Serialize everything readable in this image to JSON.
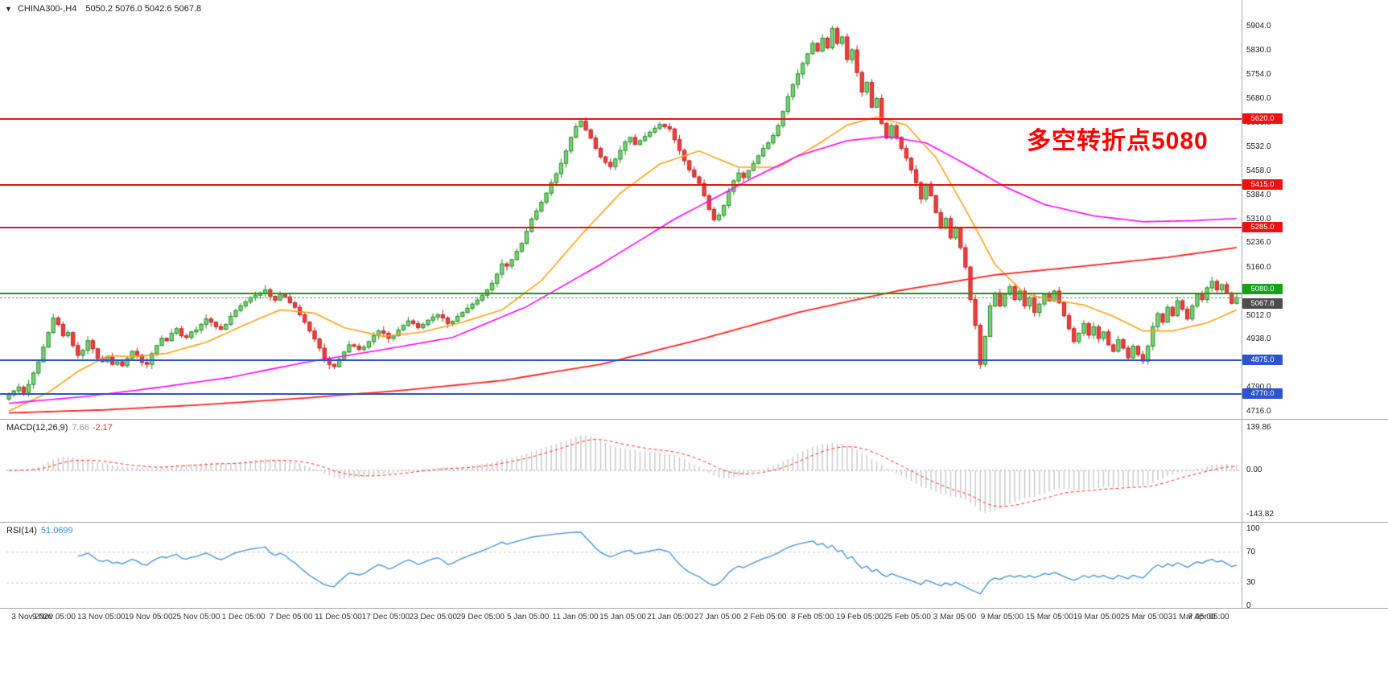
{
  "header": {
    "menu_icon": "▼",
    "symbol_tf": "CHINA300-,H4",
    "ohlc_text": "5050.2 5076.0 5042.6 5067.8"
  },
  "time_axis": {
    "labels": [
      "3 Nov 2020",
      "9 Nov 05:00",
      "13 Nov 05:00",
      "19 Nov 05:00",
      "25 Nov 05:00",
      "1 Dec 05:00",
      "7 Dec 05:00",
      "11 Dec 05:00",
      "17 Dec 05:00",
      "23 Dec 05:00",
      "29 Dec 05:00",
      "5 Jan 05:00",
      "11 Jan 05:00",
      "15 Jan 05:00",
      "21 Jan 05:00",
      "27 Jan 05:00",
      "2 Feb 05:00",
      "8 Feb 05:00",
      "19 Feb 05:00",
      "25 Feb 05:00",
      "3 Mar 05:00",
      "9 Mar 05:00",
      "15 Mar 05:00",
      "19 Mar 05:00",
      "25 Mar 05:00",
      "31 Mar 05:00",
      "7 Apr 05:00"
    ]
  },
  "chart_data": [
    {
      "panel": "main",
      "type": "candlestick",
      "symbol": "CHINA300-",
      "timeframe": "H4",
      "current_bar": {
        "open": 5050.2,
        "high": 5076.0,
        "low": 5042.6,
        "close": 5067.8
      },
      "ylim": [
        4716.0,
        5904.0
      ],
      "y_axis_ticks": [
        5904.0,
        5830.0,
        5754.0,
        5680.0,
        5606.0,
        5532.0,
        5458.0,
        5384.0,
        5310.0,
        5236.0,
        5160.0,
        5086.0,
        5012.0,
        4938.0,
        4864.0,
        4790.0,
        4716.0
      ],
      "first_open": 4755,
      "open_rule": "open equals previous close",
      "wick_cycle": [
        9,
        4,
        14,
        6,
        18,
        8,
        3,
        12,
        5,
        16,
        7,
        11
      ],
      "closes": [
        4768,
        4780,
        4792,
        4775,
        4800,
        4835,
        4870,
        4915,
        4960,
        5005,
        4985,
        4950,
        4960,
        4920,
        4890,
        4905,
        4935,
        4910,
        4880,
        4870,
        4885,
        4862,
        4870,
        4858,
        4880,
        4902,
        4890,
        4868,
        4862,
        4895,
        4920,
        4942,
        4935,
        4958,
        4972,
        4950,
        4945,
        4962,
        4968,
        4985,
        5002,
        4992,
        4978,
        4970,
        4985,
        5010,
        5028,
        5042,
        5055,
        5068,
        5075,
        5082,
        5092,
        5072,
        5060,
        5078,
        5070,
        5052,
        5038,
        5015,
        4992,
        4965,
        4940,
        4912,
        4880,
        4862,
        4855,
        4878,
        4900,
        4922,
        4918,
        4908,
        4915,
        4932,
        4950,
        4965,
        4958,
        4942,
        4950,
        4968,
        4982,
        4996,
        4988,
        4975,
        4985,
        4998,
        5008,
        5015,
        5005,
        4988,
        4995,
        5010,
        5022,
        5035,
        5048,
        5060,
        5075,
        5092,
        5112,
        5140,
        5172,
        5165,
        5185,
        5210,
        5235,
        5272,
        5310,
        5335,
        5362,
        5390,
        5422,
        5450,
        5482,
        5520,
        5562,
        5595,
        5612,
        5585,
        5560,
        5528,
        5502,
        5485,
        5472,
        5495,
        5522,
        5548,
        5562,
        5540,
        5552,
        5565,
        5578,
        5590,
        5602,
        5595,
        5588,
        5555,
        5522,
        5490,
        5462,
        5440,
        5420,
        5382,
        5340,
        5308,
        5322,
        5352,
        5395,
        5428,
        5452,
        5438,
        5460,
        5482,
        5505,
        5528,
        5545,
        5568,
        5598,
        5642,
        5688,
        5725,
        5758,
        5790,
        5820,
        5852,
        5828,
        5868,
        5838,
        5898,
        5852,
        5872,
        5802,
        5832,
        5762,
        5702,
        5732,
        5655,
        5682,
        5605,
        5560,
        5598,
        5562,
        5528,
        5498,
        5462,
        5422,
        5372,
        5418,
        5382,
        5330,
        5282,
        5312,
        5252,
        5282,
        5222,
        5162,
        5062,
        4982,
        4862,
        4948,
        5042,
        5082,
        5042,
        5078,
        5102,
        5062,
        5088,
        5042,
        5068,
        5022,
        5048,
        5078,
        5058,
        5088,
        5052,
        5012,
        4972,
        4932,
        4958,
        4988,
        4952,
        4978,
        4942,
        4962,
        4922,
        4902,
        4938,
        4912,
        4882,
        4918,
        4892,
        4872,
        4918,
        4978,
        5018,
        4992,
        5038,
        5012,
        5058,
        5032,
        5002,
        5042,
        5078,
        5062,
        5098,
        5118,
        5092,
        5108,
        5082,
        5050.2,
        5067.8
      ],
      "colors": {
        "up_fill": "#7fd07f",
        "up_stroke": "#1f8f1f",
        "down_fill": "#ef3e3e",
        "down_stroke": "#c51f1f"
      },
      "hlines": [
        {
          "price": 5620.0,
          "label": "5620.0",
          "color": "#ee1111",
          "badge": "#ee1111",
          "style": "solid",
          "width": 2,
          "badge_dy": -7
        },
        {
          "price": 5415.0,
          "label": "5415.0",
          "color": "#ee1111",
          "badge": "#ee1111",
          "style": "solid",
          "width": 2,
          "badge_dy": -7
        },
        {
          "price": 5285.0,
          "label": "5285.0",
          "color": "#ee1111",
          "badge": "#ee1111",
          "style": "solid",
          "width": 2,
          "badge_dy": -7
        },
        {
          "price": 5080.0,
          "label": "5080.0",
          "color": "#18a018",
          "badge": "#18a018",
          "style": "solid",
          "width": 2,
          "badge_dy": -12
        },
        {
          "price": 5067.8,
          "label": "5067.8",
          "color": "#8a8a8a",
          "badge": "#4d4d4d",
          "style": "dashed",
          "width": 1,
          "badge_dy": 1,
          "role": "current-price"
        },
        {
          "price": 4875.0,
          "label": "4875.0",
          "color": "#2f54cf",
          "badge": "#2f54cf",
          "style": "solid",
          "width": 2,
          "badge_dy": -7
        },
        {
          "price": 4770.0,
          "label": "4770.0",
          "color": "#2f54cf",
          "badge": "#2f54cf",
          "style": "solid",
          "width": 2,
          "badge_dy": -7
        }
      ],
      "moving_averages": [
        {
          "name": "ma-fast-orange",
          "color": "#ffa01a",
          "width": 1.6,
          "points": [
            [
              0,
              4718
            ],
            [
              8,
              4775
            ],
            [
              14,
              4840
            ],
            [
              20,
              4888
            ],
            [
              26,
              4886
            ],
            [
              32,
              4896
            ],
            [
              40,
              4930
            ],
            [
              48,
              4985
            ],
            [
              55,
              5030
            ],
            [
              62,
              5020
            ],
            [
              68,
              4975
            ],
            [
              76,
              4948
            ],
            [
              84,
              4962
            ],
            [
              92,
              4992
            ],
            [
              100,
              5030
            ],
            [
              108,
              5120
            ],
            [
              116,
              5260
            ],
            [
              124,
              5390
            ],
            [
              132,
              5480
            ],
            [
              140,
              5520
            ],
            [
              148,
              5470
            ],
            [
              156,
              5470
            ],
            [
              164,
              5540
            ],
            [
              170,
              5600
            ],
            [
              176,
              5625
            ],
            [
              182,
              5600
            ],
            [
              188,
              5500
            ],
            [
              194,
              5340
            ],
            [
              200,
              5170
            ],
            [
              206,
              5080
            ],
            [
              212,
              5060
            ],
            [
              218,
              5045
            ],
            [
              224,
              5010
            ],
            [
              230,
              4965
            ],
            [
              236,
              4965
            ],
            [
              243,
              4990
            ],
            [
              249,
              5030
            ]
          ]
        },
        {
          "name": "ma-mid-magenta",
          "color": "#ff00ff",
          "width": 1.6,
          "points": [
            [
              0,
              4742
            ],
            [
              15,
              4762
            ],
            [
              30,
              4790
            ],
            [
              45,
              4822
            ],
            [
              60,
              4868
            ],
            [
              75,
              4905
            ],
            [
              90,
              4945
            ],
            [
              105,
              5040
            ],
            [
              120,
              5170
            ],
            [
              135,
              5310
            ],
            [
              150,
              5430
            ],
            [
              160,
              5505
            ],
            [
              170,
              5552
            ],
            [
              178,
              5565
            ],
            [
              186,
              5545
            ],
            [
              194,
              5480
            ],
            [
              202,
              5410
            ],
            [
              210,
              5355
            ],
            [
              220,
              5320
            ],
            [
              230,
              5302
            ],
            [
              240,
              5305
            ],
            [
              249,
              5312
            ]
          ]
        },
        {
          "name": "ma-slow-red",
          "color": "#ff2222",
          "width": 1.8,
          "points": [
            [
              0,
              4712
            ],
            [
              20,
              4722
            ],
            [
              40,
              4738
            ],
            [
              60,
              4758
            ],
            [
              80,
              4782
            ],
            [
              100,
              4812
            ],
            [
              120,
              4862
            ],
            [
              140,
              4938
            ],
            [
              160,
              5022
            ],
            [
              180,
              5088
            ],
            [
              200,
              5138
            ],
            [
              220,
              5168
            ],
            [
              235,
              5192
            ],
            [
              249,
              5222
            ]
          ]
        }
      ],
      "annotation": {
        "text": "多空转折点5080",
        "color": "#ff0000"
      }
    },
    {
      "panel": "macd",
      "type": "bar",
      "label": "MACD(12,26,9)",
      "value_main": "7.66",
      "value_signal": "-2.17",
      "params": [
        12,
        26,
        9
      ],
      "y_ticks": [
        "139.86",
        "0.00",
        "-143.82"
      ],
      "histogram_color": "#c8c8c8",
      "signal_color": "#ff2d2d",
      "derived_from": "closes of main panel (EMA12 - EMA26, signal EMA9)"
    },
    {
      "panel": "rsi",
      "type": "line",
      "label": "RSI(14)",
      "value": "51.0699",
      "period": 14,
      "levels": [
        70,
        30
      ],
      "y_ticks": [
        "100",
        "70",
        "30",
        "0"
      ],
      "line_color": "#3f8fd6",
      "derived_from": "closes of main panel (Wilder RSI 14)"
    }
  ]
}
